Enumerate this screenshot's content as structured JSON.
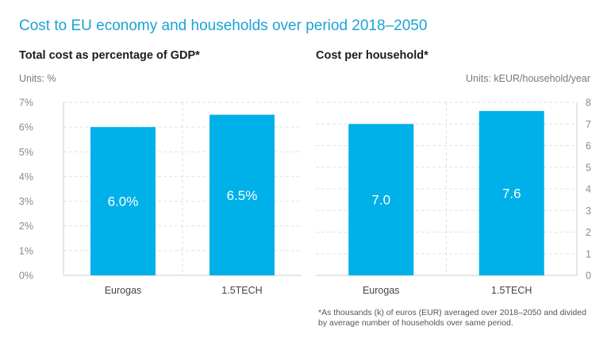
{
  "title": "Cost to EU economy and households over period 2018–2050",
  "footnote": "*As thousands (k) of euros (EUR) averaged over 2018–2050 and divided by average number of households over same period.",
  "colors": {
    "title": "#1aa3d4",
    "bar": "#00b0e8",
    "axis": "#cccccc",
    "grid": "#e2e2e2"
  },
  "chart_data": [
    {
      "type": "bar",
      "title": "Total cost as percentage of GDP*",
      "units": "Units: %",
      "categories": [
        "Eurogas",
        "1.5TECH"
      ],
      "values": [
        6.0,
        6.5
      ],
      "data_labels": [
        "6.0%",
        "6.5%"
      ],
      "ylim": [
        0,
        7
      ],
      "yticks": [
        0,
        1,
        2,
        3,
        4,
        5,
        6,
        7
      ],
      "ytick_labels": [
        "0%",
        "1%",
        "2%",
        "3%",
        "4%",
        "5%",
        "6%",
        "7%"
      ],
      "yaxis_side": "left"
    },
    {
      "type": "bar",
      "title": "Cost per household*",
      "units": "Units: kEUR/household/year",
      "categories": [
        "Eurogas",
        "1.5TECH"
      ],
      "values": [
        7.0,
        7.6
      ],
      "data_labels": [
        "7.0",
        "7.6"
      ],
      "ylim": [
        0,
        8
      ],
      "yticks": [
        0,
        1,
        2,
        3,
        4,
        5,
        6,
        7,
        8
      ],
      "ytick_labels": [
        "0",
        "1",
        "2",
        "3",
        "4",
        "5",
        "6",
        "7",
        "8"
      ],
      "yaxis_side": "right"
    }
  ]
}
